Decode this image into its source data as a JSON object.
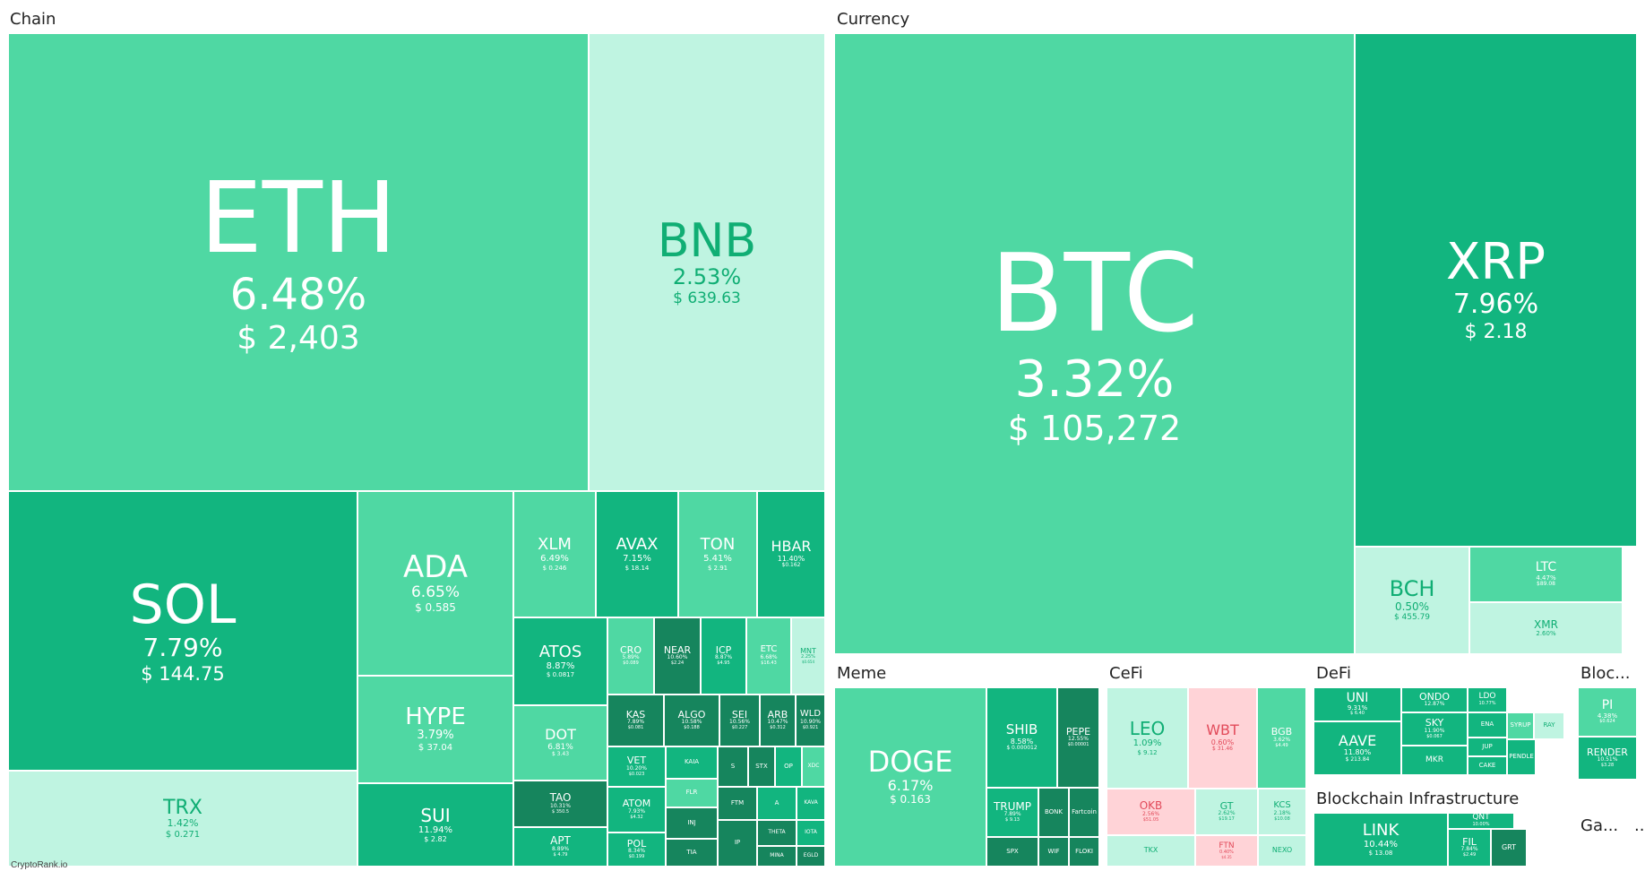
{
  "sections": {
    "chain": "Chain",
    "currency": "Currency",
    "meme": "Meme",
    "cefi": "CeFi",
    "defi": "DeFi",
    "bloc": "Bloc...",
    "blockchain_infrastructure": "Blockchain Infrastructure",
    "ga": "Ga...",
    "more": "..."
  },
  "colors": {
    "up_medium": "#4fd8a3",
    "up_strong": "#12b57f",
    "up_very_strong": "#16855d",
    "up_weak": "#bff4e1",
    "down": "#ffd3d7",
    "down_text": "#e24a5a"
  },
  "coins": {
    "eth": {
      "sym": "ETH",
      "pct": "6.48%",
      "price": "$ 2,403"
    },
    "bnb": {
      "sym": "BNB",
      "pct": "2.53%",
      "price": "$ 639.63"
    },
    "sol": {
      "sym": "SOL",
      "pct": "7.79%",
      "price": "$ 144.75"
    },
    "ada": {
      "sym": "ADA",
      "pct": "6.65%",
      "price": "$ 0.585"
    },
    "hype": {
      "sym": "HYPE",
      "pct": "3.79%",
      "price": "$ 37.04"
    },
    "sui": {
      "sym": "SUI",
      "pct": "11.94%",
      "price": "$ 2.82"
    },
    "trx": {
      "sym": "TRX",
      "pct": "1.42%",
      "price": "$ 0.271"
    },
    "xlm": {
      "sym": "XLM",
      "pct": "6.49%",
      "price": "$ 0.246"
    },
    "avax": {
      "sym": "AVAX",
      "pct": "7.15%",
      "price": "$ 18.14"
    },
    "ton": {
      "sym": "TON",
      "pct": "5.41%",
      "price": "$ 2.91"
    },
    "hbar": {
      "sym": "HBAR",
      "pct": "11.40%",
      "price": "$0.162"
    },
    "atos": {
      "sym": "ATOS",
      "pct": "8.87%",
      "price": "$ 0.0817"
    },
    "cro": {
      "sym": "CRO",
      "pct": "5.89%",
      "price": "$0.089"
    },
    "near": {
      "sym": "NEAR",
      "pct": "10.60%",
      "price": "$2.24"
    },
    "icp": {
      "sym": "ICP",
      "pct": "8.87%",
      "price": "$4.95"
    },
    "etc": {
      "sym": "ETC",
      "pct": "6.68%",
      "price": "$16.43"
    },
    "mnt": {
      "sym": "MNT",
      "pct": "2.25%",
      "price": "$0.654"
    },
    "dot": {
      "sym": "DOT",
      "pct": "6.81%",
      "price": "$ 3.43"
    },
    "kas": {
      "sym": "KAS",
      "pct": "7.89%",
      "price": "$0.081"
    },
    "algo": {
      "sym": "ALGO",
      "pct": "10.58%",
      "price": "$0.188"
    },
    "sei": {
      "sym": "SEI",
      "pct": "10.56%",
      "price": "$0.227"
    },
    "arb": {
      "sym": "ARB",
      "pct": "10.47%",
      "price": "$0.312"
    },
    "wld": {
      "sym": "WLD",
      "pct": "10.90%",
      "price": "$0.921"
    },
    "vet": {
      "sym": "VET",
      "pct": "10.20%",
      "price": "$0.023"
    },
    "kaia": {
      "sym": "KAIA",
      "pct": "",
      "price": ""
    },
    "s": {
      "sym": "S",
      "pct": "",
      "price": ""
    },
    "stx": {
      "sym": "STX",
      "pct": "",
      "price": ""
    },
    "op": {
      "sym": "OP",
      "pct": "",
      "price": ""
    },
    "xdc": {
      "sym": "XDC",
      "pct": "",
      "price": ""
    },
    "tao": {
      "sym": "TAO",
      "pct": "10.31%",
      "price": "$ 350.5"
    },
    "atom": {
      "sym": "ATOM",
      "pct": "7.93%",
      "price": "$4.32"
    },
    "flr": {
      "sym": "FLR",
      "pct": "",
      "price": ""
    },
    "inj": {
      "sym": "INJ",
      "pct": "",
      "price": ""
    },
    "ftm": {
      "sym": "FTM",
      "pct": "",
      "price": ""
    },
    "a": {
      "sym": "A",
      "pct": "",
      "price": ""
    },
    "kava": {
      "sym": "KAVA",
      "pct": "",
      "price": ""
    },
    "apt": {
      "sym": "APT",
      "pct": "8.89%",
      "price": "$ 4.79"
    },
    "pol": {
      "sym": "POL",
      "pct": "8.34%",
      "price": "$0.199"
    },
    "tia": {
      "sym": "TIA",
      "pct": "",
      "price": ""
    },
    "ip": {
      "sym": "IP",
      "pct": "",
      "price": ""
    },
    "theta": {
      "sym": "THETA",
      "pct": "",
      "price": ""
    },
    "iota": {
      "sym": "IOTA",
      "pct": "",
      "price": ""
    },
    "mina": {
      "sym": "MINA",
      "pct": "",
      "price": ""
    },
    "egld": {
      "sym": "EGLD",
      "pct": "",
      "price": ""
    },
    "btc": {
      "sym": "BTC",
      "pct": "3.32%",
      "price": "$ 105,272"
    },
    "xrp": {
      "sym": "XRP",
      "pct": "7.96%",
      "price": "$ 2.18"
    },
    "bch": {
      "sym": "BCH",
      "pct": "0.50%",
      "price": "$ 455.79"
    },
    "ltc": {
      "sym": "LTC",
      "pct": "4.47%",
      "price": "$89.08"
    },
    "xmr": {
      "sym": "XMR",
      "pct": "2.60%",
      "price": ""
    },
    "doge": {
      "sym": "DOGE",
      "pct": "6.17%",
      "price": "$ 0.163"
    },
    "shib": {
      "sym": "SHIB",
      "pct": "8.58%",
      "price": "$ 0.000012"
    },
    "pepe": {
      "sym": "PEPE",
      "pct": "12.55%",
      "price": "$0.00001"
    },
    "trump": {
      "sym": "TRUMP",
      "pct": "7.89%",
      "price": "$ 9.13"
    },
    "bonk": {
      "sym": "BONK",
      "pct": "",
      "price": ""
    },
    "fartcoin": {
      "sym": "Fartcoin",
      "pct": "",
      "price": ""
    },
    "spx": {
      "sym": "SPX",
      "pct": "",
      "price": ""
    },
    "wif": {
      "sym": "WIF",
      "pct": "",
      "price": ""
    },
    "floki": {
      "sym": "FLOKI",
      "pct": "",
      "price": ""
    },
    "leo": {
      "sym": "LEO",
      "pct": "1.09%",
      "price": "$ 9.12"
    },
    "wbt": {
      "sym": "WBT",
      "pct": "0.60%",
      "price": "$ 31.46"
    },
    "bgb": {
      "sym": "BGB",
      "pct": "3.62%",
      "price": "$4.49"
    },
    "okb": {
      "sym": "OKB",
      "pct": "2.56%",
      "price": "$51.05"
    },
    "gt": {
      "sym": "GT",
      "pct": "2.62%",
      "price": "$19.17"
    },
    "kcs": {
      "sym": "KCS",
      "pct": "2.18%",
      "price": "$10.08"
    },
    "tkx": {
      "sym": "TKX",
      "pct": "",
      "price": ""
    },
    "ftn": {
      "sym": "FTN",
      "pct": "0.40%",
      "price": "$4.35"
    },
    "nexo": {
      "sym": "NEXO",
      "pct": "",
      "price": ""
    },
    "uni": {
      "sym": "UNI",
      "pct": "9.31%",
      "price": "$ 6.40"
    },
    "ondo": {
      "sym": "ONDO",
      "pct": "12.87%",
      "price": ""
    },
    "lido": {
      "sym": "LDO",
      "pct": "10.77%",
      "price": ""
    },
    "aave": {
      "sym": "AAVE",
      "pct": "11.80%",
      "price": "$ 213.84"
    },
    "sky": {
      "sym": "SKY",
      "pct": "11.90%",
      "price": "$0.067"
    },
    "mkr": {
      "sym": "MKR",
      "pct": "",
      "price": ""
    },
    "ena": {
      "sym": "ENA",
      "pct": "",
      "price": ""
    },
    "jup": {
      "sym": "JUP",
      "pct": "",
      "price": ""
    },
    "cake": {
      "sym": "CAKE",
      "pct": "",
      "price": ""
    },
    "syrup": {
      "sym": "SYRUP",
      "pct": "",
      "price": ""
    },
    "pendle": {
      "sym": "PENDLE",
      "pct": "",
      "price": ""
    },
    "raydium": {
      "sym": "RAY",
      "pct": "",
      "price": ""
    },
    "pi": {
      "sym": "PI",
      "pct": "4.38%",
      "price": "$0.624"
    },
    "render": {
      "sym": "RENDER",
      "pct": "10.51%",
      "price": "$3.28"
    },
    "link": {
      "sym": "LINK",
      "pct": "10.44%",
      "price": "$ 13.08"
    },
    "fil": {
      "sym": "FIL",
      "pct": "7.84%",
      "price": "$2.49"
    },
    "grt": {
      "sym": "GRT",
      "pct": "",
      "price": ""
    },
    "qnt": {
      "sym": "QNT",
      "pct": "10.00%",
      "price": ""
    }
  },
  "watermark": "CryptoRank.io"
}
